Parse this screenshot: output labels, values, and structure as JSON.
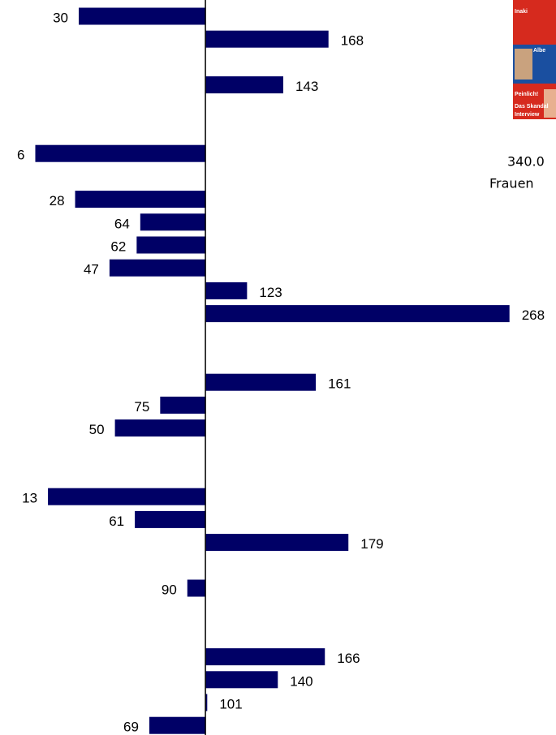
{
  "chart_data": {
    "type": "bar",
    "orientation": "horizontal",
    "values": [
      30,
      168,
      null,
      143,
      null,
      null,
      6,
      null,
      28,
      64,
      62,
      47,
      123,
      268,
      null,
      null,
      161,
      75,
      50,
      null,
      null,
      13,
      61,
      179,
      null,
      90,
      null,
      null,
      166,
      140,
      101,
      69
    ],
    "color": "#000066",
    "baseline": 100,
    "xlim": [
      -13.5,
      293.7
    ]
  },
  "side_text": [
    "340.0",
    "Frauen"
  ],
  "magazine": [
    "Inaki",
    "Albe",
    "Peinlich!",
    "Das Skandal",
    "Interview"
  ]
}
